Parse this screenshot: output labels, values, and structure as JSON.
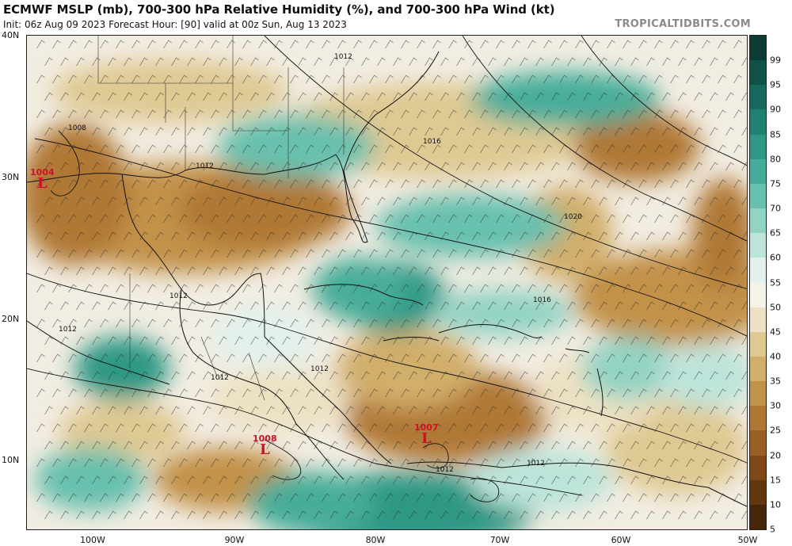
{
  "header": {
    "title": "ECMWF MSLP (mb), 700-300 hPa Relative Humidity (%), and 700-300 hPa Wind (kt)",
    "subtitle": "Init: 06z Aug 09 2023   Forecast Hour: [90]   valid at 00z Sun, Aug 13 2023",
    "brand": "TROPICALTIDBITS.COM"
  },
  "axes": {
    "lat_labels": [
      "40N",
      "30N",
      "20N",
      "10N"
    ],
    "lon_labels": [
      "100W",
      "90W",
      "80W",
      "70W",
      "60W",
      "50W"
    ]
  },
  "colorbar": {
    "labels": [
      "99",
      "95",
      "90",
      "85",
      "80",
      "75",
      "70",
      "65",
      "60",
      "55",
      "50",
      "45",
      "40",
      "35",
      "30",
      "25",
      "20",
      "15",
      "10",
      "5"
    ],
    "colors": [
      "#0b3b33",
      "#0f5248",
      "#16695c",
      "#1f8170",
      "#2e9885",
      "#46ad9a",
      "#68c0ae",
      "#93d3c4",
      "#bde4da",
      "#e3f1ec",
      "#f5f2e8",
      "#ede1c3",
      "#dfc993",
      "#d1ae6a",
      "#c2924a",
      "#b07834",
      "#995f22",
      "#7f4916",
      "#62360e",
      "#462508"
    ]
  },
  "isobar_labels": [
    "1012",
    "1008",
    "1012",
    "1016",
    "1020",
    "1012",
    "1012",
    "1016",
    "1012",
    "1012",
    "1012",
    "1012"
  ],
  "lows": [
    {
      "pressure": "1004",
      "symbol": "L"
    },
    {
      "pressure": "1008",
      "symbol": "L"
    },
    {
      "pressure": "1007",
      "symbol": "L"
    }
  ]
}
